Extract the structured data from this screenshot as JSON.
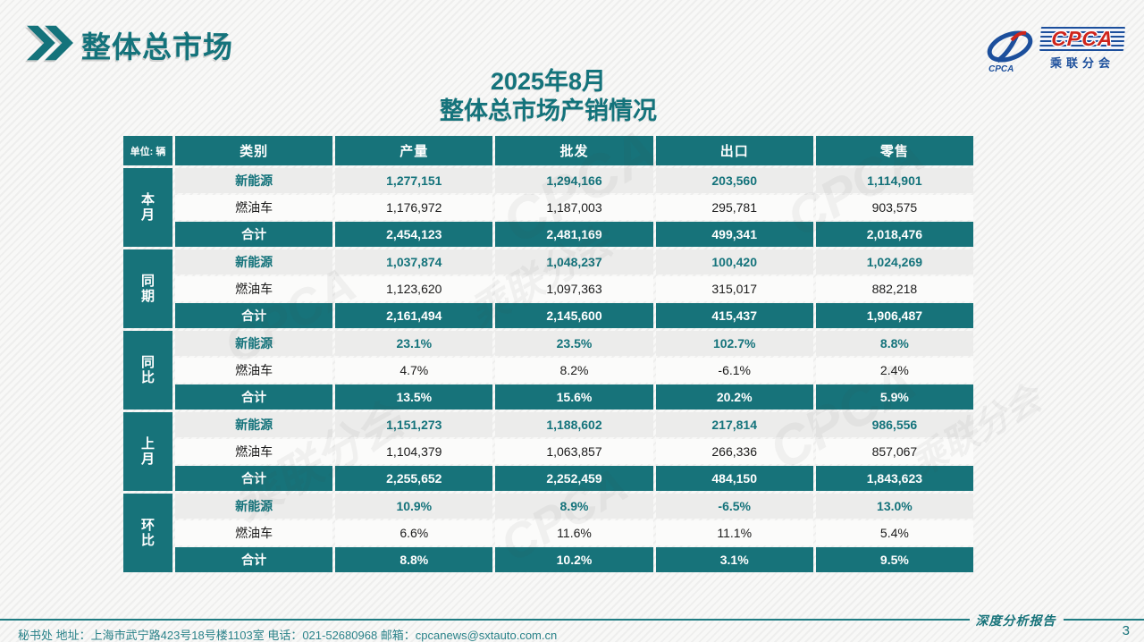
{
  "page": {
    "slide_title": "整体总市场",
    "report_title_line1": "2025年8月",
    "report_title_line2": "整体总市场产销情况",
    "page_number": "3",
    "footer_info": "秘书处   地址：上海市武宁路423号18号楼1103室  电话：021-52680968   邮箱：cpcanews@sxtauto.com.cn",
    "footer_report_label": "深度分析报告"
  },
  "logo": {
    "text": "CPCA",
    "subtext": "乘联分会",
    "emblem_caption": "CPCA"
  },
  "colors": {
    "teal": "#17737a",
    "title_teal": "#14737b",
    "logo_blue": "#1c4f9c",
    "logo_red": "#ce241b",
    "nev_row_bg": "#ececeb",
    "fuel_row_bg": "#fbfbfa"
  },
  "watermark": {
    "primary": "CPCA",
    "secondary": "乘联分会"
  },
  "table": {
    "unit_label": "单位: 辆",
    "columns": [
      "类别",
      "产量",
      "批发",
      "出口",
      "零售"
    ],
    "groups": [
      {
        "label": "本月",
        "rows": [
          {
            "category": "新能源",
            "style": "nev",
            "values": [
              "1,277,151",
              "1,294,166",
              "203,560",
              "1,114,901"
            ]
          },
          {
            "category": "燃油车",
            "style": "fuel",
            "values": [
              "1,176,972",
              "1,187,003",
              "295,781",
              "903,575"
            ]
          },
          {
            "category": "合计",
            "style": "total",
            "values": [
              "2,454,123",
              "2,481,169",
              "499,341",
              "2,018,476"
            ]
          }
        ]
      },
      {
        "label": "同期",
        "rows": [
          {
            "category": "新能源",
            "style": "nev",
            "values": [
              "1,037,874",
              "1,048,237",
              "100,420",
              "1,024,269"
            ]
          },
          {
            "category": "燃油车",
            "style": "fuel",
            "values": [
              "1,123,620",
              "1,097,363",
              "315,017",
              "882,218"
            ]
          },
          {
            "category": "合计",
            "style": "total",
            "values": [
              "2,161,494",
              "2,145,600",
              "415,437",
              "1,906,487"
            ]
          }
        ]
      },
      {
        "label": "同比",
        "rows": [
          {
            "category": "新能源",
            "style": "nev",
            "values": [
              "23.1%",
              "23.5%",
              "102.7%",
              "8.8%"
            ]
          },
          {
            "category": "燃油车",
            "style": "fuel",
            "values": [
              "4.7%",
              "8.2%",
              "-6.1%",
              "2.4%"
            ]
          },
          {
            "category": "合计",
            "style": "total",
            "values": [
              "13.5%",
              "15.6%",
              "20.2%",
              "5.9%"
            ]
          }
        ]
      },
      {
        "label": "上月",
        "rows": [
          {
            "category": "新能源",
            "style": "nev",
            "values": [
              "1,151,273",
              "1,188,602",
              "217,814",
              "986,556"
            ]
          },
          {
            "category": "燃油车",
            "style": "fuel",
            "values": [
              "1,104,379",
              "1,063,857",
              "266,336",
              "857,067"
            ]
          },
          {
            "category": "合计",
            "style": "total",
            "values": [
              "2,255,652",
              "2,252,459",
              "484,150",
              "1,843,623"
            ]
          }
        ]
      },
      {
        "label": "环比",
        "rows": [
          {
            "category": "新能源",
            "style": "nev",
            "values": [
              "10.9%",
              "8.9%",
              "-6.5%",
              "13.0%"
            ]
          },
          {
            "category": "燃油车",
            "style": "fuel",
            "values": [
              "6.6%",
              "11.6%",
              "11.1%",
              "5.4%"
            ]
          },
          {
            "category": "合计",
            "style": "total",
            "values": [
              "8.8%",
              "10.2%",
              "3.1%",
              "9.5%"
            ]
          }
        ]
      }
    ]
  }
}
